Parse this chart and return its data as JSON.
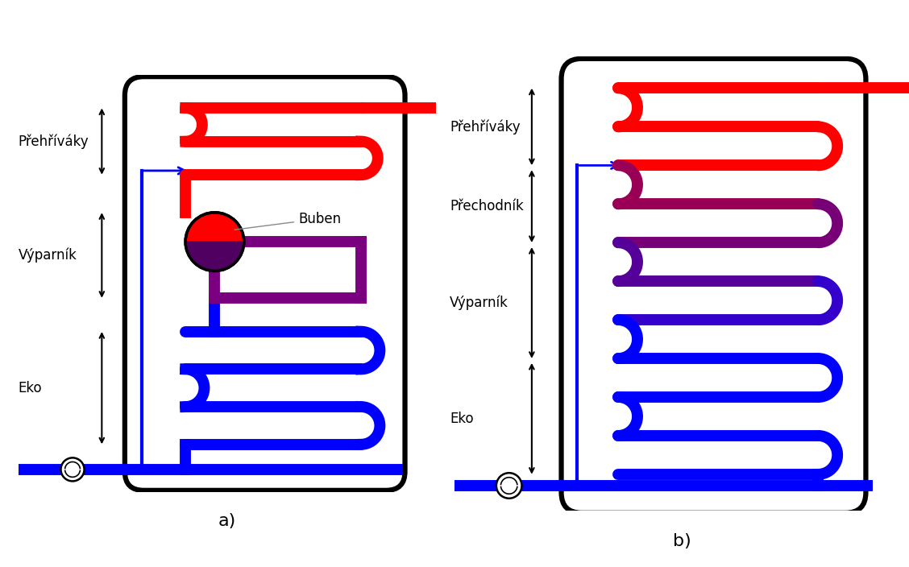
{
  "fig_width": 11.28,
  "fig_height": 7.04,
  "bg_color": "#ffffff",
  "colors": {
    "red": "#ff0000",
    "blue": "#0000ff",
    "purple": "#7b0080",
    "dark_purple": "#4b0070",
    "black": "#000000",
    "white": "#ffffff"
  },
  "labels": {
    "prehrivaky": "Přehříváky",
    "vyparnik": "Výparník",
    "eko": "Eko",
    "buben": "Buben",
    "prechednik": "Přechodník",
    "a": "a)",
    "b": "b)"
  },
  "font_size": 12
}
